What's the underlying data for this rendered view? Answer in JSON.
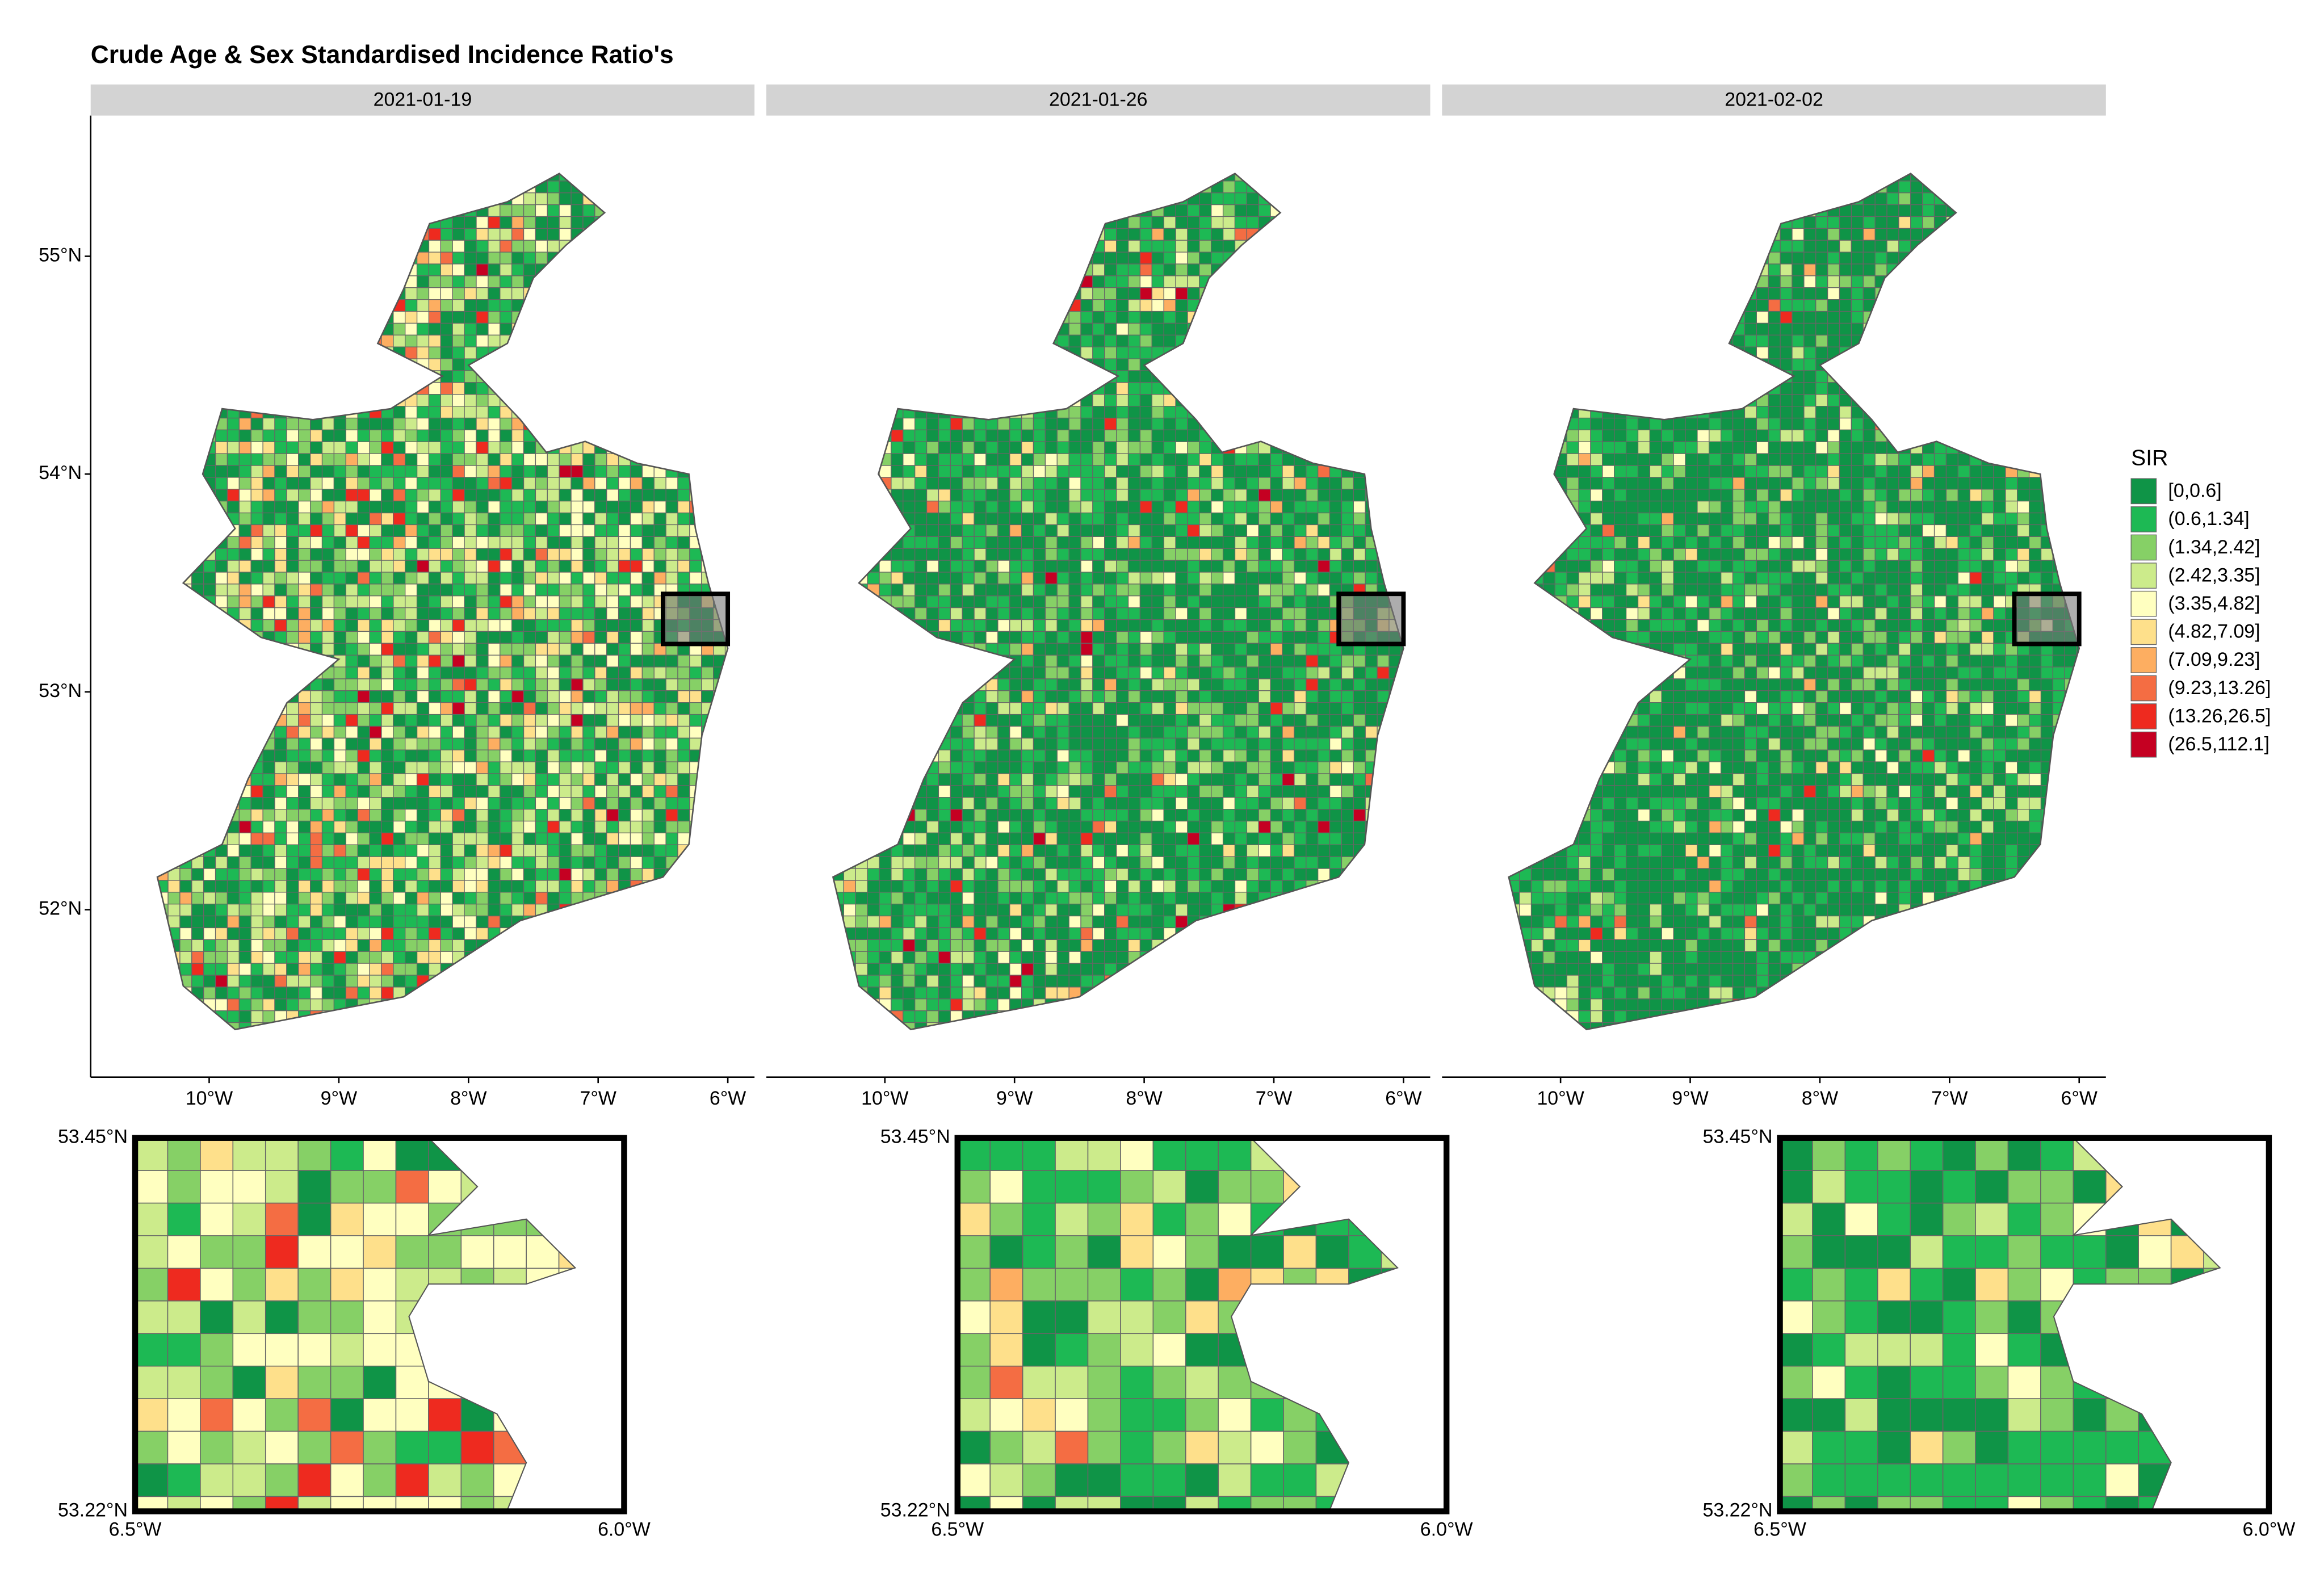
{
  "title": "Crude Age & Sex Standardised Incidence Ratio's",
  "panels": [
    {
      "label": "2021-01-19"
    },
    {
      "label": "2021-01-26"
    },
    {
      "label": "2021-02-02"
    }
  ],
  "map": {
    "xlim": [
      -10.914,
      -5.794
    ],
    "ylim": [
      51.231,
      55.646
    ],
    "xticks": [
      {
        "value": -10,
        "label": "10°W"
      },
      {
        "value": -9,
        "label": "9°W"
      },
      {
        "value": -8,
        "label": "8°W"
      },
      {
        "value": -7,
        "label": "7°W"
      },
      {
        "value": -6,
        "label": "6°W"
      }
    ],
    "yticks": [
      {
        "value": 52,
        "label": "52°N"
      },
      {
        "value": 53,
        "label": "53°N"
      },
      {
        "value": 54,
        "label": "54°N"
      },
      {
        "value": 55,
        "label": "55°N"
      }
    ]
  },
  "inset": {
    "xlim": [
      -6.5,
      -6.0
    ],
    "ylim": [
      53.22,
      53.45
    ],
    "xticks": [
      {
        "value": -6.5,
        "label": "6.5°W"
      },
      {
        "value": -6.0,
        "label": "6.0°W"
      }
    ],
    "yticks": [
      {
        "value": 53.22,
        "label": "53.22°N"
      },
      {
        "value": 53.45,
        "label": "53.45°N"
      }
    ]
  },
  "legend": {
    "title": "SIR",
    "items": [
      {
        "label": "[0,0.6]",
        "color": "#0f9447"
      },
      {
        "label": "(0.6,1.34]",
        "color": "#1db954"
      },
      {
        "label": "(1.34,2.42]",
        "color": "#86d066"
      },
      {
        "label": "(2.42,3.35]",
        "color": "#cceb8b"
      },
      {
        "label": "(3.35,4.82]",
        "color": "#ffffc0"
      },
      {
        "label": "(4.82,7.09]",
        "color": "#fee08b"
      },
      {
        "label": "(7.09,9.23]",
        "color": "#fdae61"
      },
      {
        "label": "(9.23,13.26]",
        "color": "#f46d43"
      },
      {
        "label": "(13.26,26.5]",
        "color": "#ee2a1f"
      },
      {
        "label": "(26.5,112.1]",
        "color": "#c50022"
      }
    ]
  }
}
